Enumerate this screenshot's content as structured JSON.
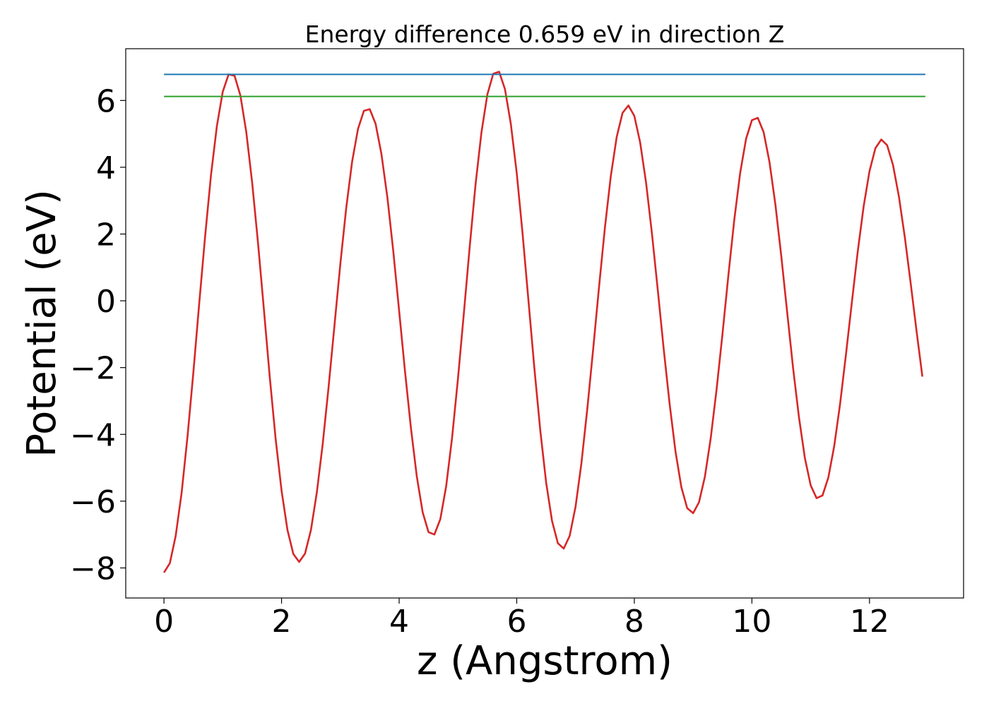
{
  "chart_data": {
    "type": "line",
    "title": "Energy difference 0.659 eV in direction Z",
    "xlabel": "z (Angstrom)",
    "ylabel": "Potential (eV)",
    "xlim": [
      -0.65,
      13.6
    ],
    "ylim": [
      -8.9,
      7.55
    ],
    "xticks": [
      0,
      2,
      4,
      6,
      8,
      10,
      12
    ],
    "yticks": [
      -8,
      -6,
      -4,
      -2,
      0,
      2,
      4,
      6
    ],
    "xtick_labels": [
      "0",
      "2",
      "4",
      "6",
      "8",
      "10",
      "12"
    ],
    "ytick_labels": [
      "−8",
      "−6",
      "−4",
      "−2",
      "0",
      "2",
      "4",
      "6"
    ],
    "grid": false,
    "legend": "none",
    "series": [
      {
        "color": "#d62728",
        "x": [
          0.0,
          0.1,
          0.2,
          0.3,
          0.4,
          0.5,
          0.6,
          0.7,
          0.8,
          0.9,
          1.0,
          1.1,
          1.2,
          1.3,
          1.4,
          1.5,
          1.6,
          1.7,
          1.8,
          1.9,
          2.0,
          2.1,
          2.2,
          2.3,
          2.4,
          2.5,
          2.6,
          2.7,
          2.8,
          2.9,
          3.0,
          3.1,
          3.2,
          3.3,
          3.4,
          3.5,
          3.6,
          3.7,
          3.8,
          3.9,
          4.0,
          4.1,
          4.2,
          4.3,
          4.4,
          4.5,
          4.6,
          4.7,
          4.8,
          4.9,
          5.0,
          5.1,
          5.2,
          5.3,
          5.4,
          5.5,
          5.6,
          5.7,
          5.8,
          5.9,
          6.0,
          6.1,
          6.2,
          6.3,
          6.4,
          6.5,
          6.6,
          6.7,
          6.8,
          6.9,
          7.0,
          7.1,
          7.2,
          7.3,
          7.4,
          7.5,
          7.6,
          7.7,
          7.8,
          7.9,
          8.0,
          8.1,
          8.2,
          8.3,
          8.4,
          8.5,
          8.6,
          8.7,
          8.8,
          8.9,
          9.0,
          9.1,
          9.2,
          9.3,
          9.4,
          9.5,
          9.6,
          9.7,
          9.8,
          9.9,
          10.0,
          10.1,
          10.2,
          10.3,
          10.4,
          10.5,
          10.6,
          10.7,
          10.8,
          10.9,
          11.0,
          11.1,
          11.2,
          11.3,
          11.4,
          11.5,
          11.6,
          11.7,
          11.8,
          11.9,
          12.0,
          12.1,
          12.2,
          12.3,
          12.4,
          12.5,
          12.6,
          12.7,
          12.8,
          12.9
        ],
        "y": [
          -8.14,
          -7.86,
          -7.04,
          -5.75,
          -4.07,
          -2.15,
          -0.08,
          1.94,
          3.77,
          5.23,
          6.26,
          6.78,
          6.74,
          6.15,
          5.06,
          3.55,
          1.72,
          -0.27,
          -2.29,
          -4.14,
          -5.69,
          -6.86,
          -7.58,
          -7.82,
          -7.57,
          -6.86,
          -5.74,
          -4.29,
          -2.59,
          -0.73,
          1.11,
          2.78,
          4.16,
          5.15,
          5.69,
          5.74,
          5.3,
          4.39,
          3.09,
          1.49,
          -0.3,
          -2.11,
          -3.81,
          -5.26,
          -6.33,
          -6.93,
          -7.0,
          -6.54,
          -5.55,
          -4.11,
          -2.35,
          -0.38,
          1.62,
          3.49,
          5.04,
          6.18,
          6.8,
          6.86,
          6.34,
          5.3,
          3.82,
          2.0,
          0.0,
          -2.01,
          -3.88,
          -5.44,
          -6.59,
          -7.26,
          -7.42,
          -7.04,
          -6.17,
          -4.87,
          -3.25,
          -1.44,
          0.42,
          2.19,
          3.73,
          4.91,
          5.63,
          5.85,
          5.54,
          4.74,
          3.53,
          2.01,
          0.31,
          -1.44,
          -3.09,
          -4.51,
          -5.58,
          -6.21,
          -6.36,
          -6.03,
          -5.27,
          -4.11,
          -2.65,
          -0.98,
          0.77,
          2.42,
          3.82,
          4.85,
          5.41,
          5.48,
          5.05,
          4.15,
          2.87,
          1.33,
          -0.34,
          -2.0,
          -3.49,
          -4.7,
          -5.53,
          -5.91,
          -5.83,
          -5.29,
          -4.35,
          -3.09,
          -1.61,
          -0.04,
          1.48,
          2.82,
          3.88,
          4.57,
          4.83,
          4.66,
          4.07,
          3.13,
          1.91,
          0.53,
          -0.9,
          -2.27
        ]
      },
      {
        "color": "#1f77b4",
        "x": [
          0.0,
          12.95
        ],
        "y": [
          6.78,
          6.78
        ]
      },
      {
        "color": "#2ca02c",
        "x": [
          0.0,
          12.95
        ],
        "y": [
          6.12,
          6.12
        ]
      }
    ]
  }
}
